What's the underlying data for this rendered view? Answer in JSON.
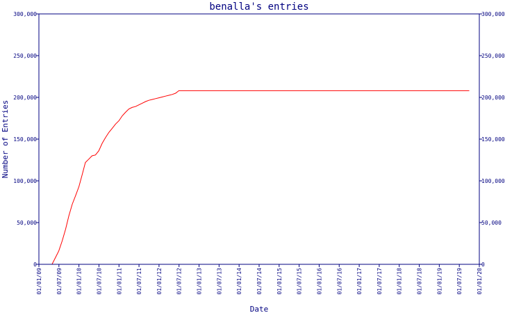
{
  "chart_data": {
    "type": "line",
    "title": "benalla's entries",
    "xlabel": "Date",
    "ylabel": "Number of Entries",
    "x_ticks": [
      "01/01/09",
      "01/07/09",
      "01/01/10",
      "01/07/10",
      "01/01/11",
      "01/07/11",
      "01/01/12",
      "01/07/12",
      "01/01/13",
      "01/07/13",
      "01/01/14",
      "01/07/14",
      "01/01/15",
      "01/07/15",
      "01/01/16",
      "01/07/16",
      "01/01/17",
      "01/07/17",
      "01/01/18",
      "01/07/18",
      "01/01/19",
      "01/07/19",
      "01/01/20"
    ],
    "y_ticks": [
      {
        "value": 0,
        "label": "0"
      },
      {
        "value": 50000,
        "label": "50,000"
      },
      {
        "value": 100000,
        "label": "100,000"
      },
      {
        "value": 150000,
        "label": "150,000"
      },
      {
        "value": 200000,
        "label": "200,000"
      },
      {
        "value": 250000,
        "label": "250,000"
      },
      {
        "value": 300000,
        "label": "300,000"
      }
    ],
    "ylim": [
      0,
      300000
    ],
    "xlim": [
      "2009-01-01",
      "2020-01-01"
    ],
    "grid": false,
    "colors": {
      "axis": "#000080",
      "line": "#ff0000",
      "background": "#ffffff"
    },
    "series": [
      {
        "color": "#ff0000",
        "points": [
          {
            "x": "2009-05-01",
            "y": 0
          },
          {
            "x": "2009-06-01",
            "y": 8000
          },
          {
            "x": "2009-07-01",
            "y": 16000
          },
          {
            "x": "2009-08-01",
            "y": 28000
          },
          {
            "x": "2009-09-01",
            "y": 42000
          },
          {
            "x": "2009-10-01",
            "y": 58000
          },
          {
            "x": "2009-11-01",
            "y": 72000
          },
          {
            "x": "2009-12-01",
            "y": 82000
          },
          {
            "x": "2010-01-01",
            "y": 93000
          },
          {
            "x": "2010-02-01",
            "y": 108000
          },
          {
            "x": "2010-03-01",
            "y": 122000
          },
          {
            "x": "2010-04-01",
            "y": 126000
          },
          {
            "x": "2010-05-01",
            "y": 130000
          },
          {
            "x": "2010-06-01",
            "y": 131000
          },
          {
            "x": "2010-07-01",
            "y": 136000
          },
          {
            "x": "2010-08-01",
            "y": 145000
          },
          {
            "x": "2010-09-01",
            "y": 152000
          },
          {
            "x": "2010-10-01",
            "y": 158000
          },
          {
            "x": "2010-11-01",
            "y": 163000
          },
          {
            "x": "2010-12-01",
            "y": 168000
          },
          {
            "x": "2011-01-01",
            "y": 172000
          },
          {
            "x": "2011-02-01",
            "y": 178000
          },
          {
            "x": "2011-03-01",
            "y": 182000
          },
          {
            "x": "2011-04-01",
            "y": 186000
          },
          {
            "x": "2011-05-01",
            "y": 188000
          },
          {
            "x": "2011-06-01",
            "y": 189000
          },
          {
            "x": "2011-07-01",
            "y": 191000
          },
          {
            "x": "2011-08-01",
            "y": 193000
          },
          {
            "x": "2011-09-01",
            "y": 195000
          },
          {
            "x": "2011-10-01",
            "y": 196500
          },
          {
            "x": "2011-11-01",
            "y": 197500
          },
          {
            "x": "2011-12-01",
            "y": 198500
          },
          {
            "x": "2012-01-01",
            "y": 199500
          },
          {
            "x": "2012-02-01",
            "y": 200500
          },
          {
            "x": "2012-03-01",
            "y": 201500
          },
          {
            "x": "2012-04-01",
            "y": 202500
          },
          {
            "x": "2012-05-01",
            "y": 203500
          },
          {
            "x": "2012-06-01",
            "y": 205000
          },
          {
            "x": "2012-07-01",
            "y": 208000
          },
          {
            "x": "2019-10-01",
            "y": 208000
          }
        ]
      }
    ]
  }
}
